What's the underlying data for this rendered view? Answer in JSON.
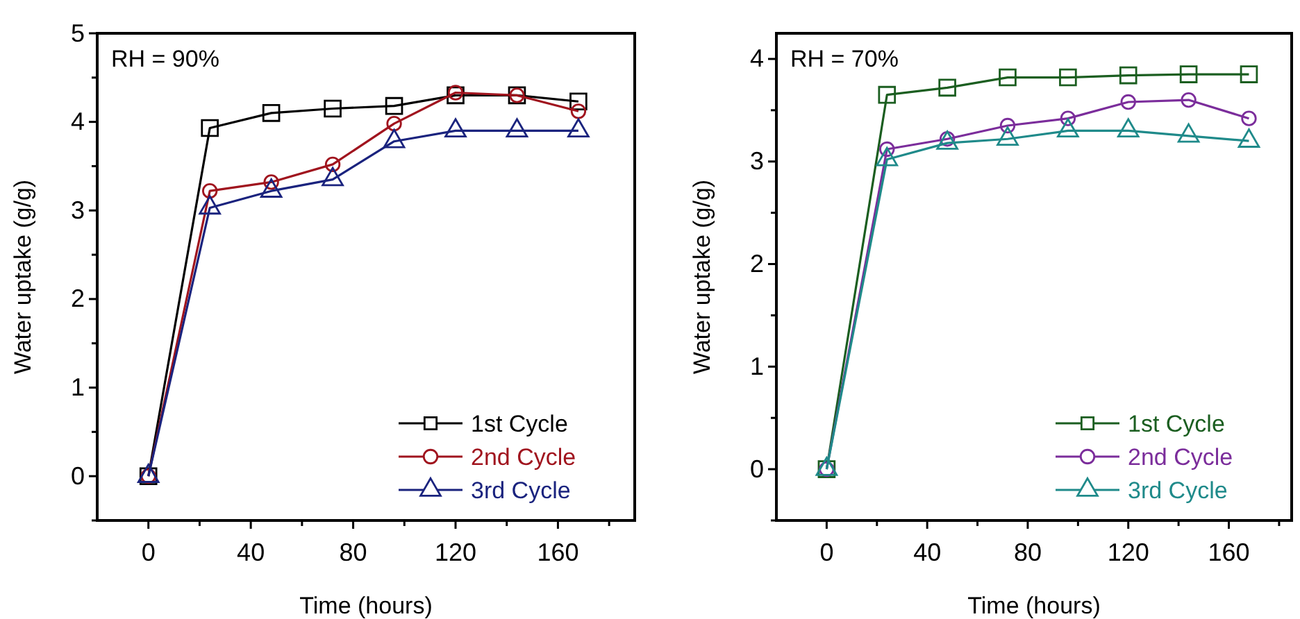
{
  "chart_data": [
    {
      "type": "line",
      "xlabel": "Time (hours)",
      "ylabel": "Water uptake (g/g)",
      "annotations": [
        "RH = 90%"
      ],
      "x": [
        0,
        24,
        48,
        72,
        96,
        120,
        144,
        168
      ],
      "xlim": [
        -20,
        190
      ],
      "xticks": [
        0,
        {
          "value": 20,
          "label": null
        },
        40,
        {
          "value": 60,
          "label": null
        },
        80,
        {
          "value": 100,
          "label": null
        },
        120,
        {
          "value": 140,
          "label": null
        },
        160,
        {
          "value": 180,
          "label": null
        }
      ],
      "ylim": [
        -0.5,
        5
      ],
      "yticks": [
        {
          "value": -0.5,
          "label": null
        },
        0,
        {
          "value": 0.5,
          "label": null
        },
        1,
        {
          "value": 1.5,
          "label": null
        },
        2,
        {
          "value": 2.5,
          "label": null
        },
        3,
        {
          "value": 3.5,
          "label": null
        },
        4,
        {
          "value": 4.5,
          "label": null
        },
        5
      ],
      "grid": false,
      "legend": "bottom right",
      "line_style": "solid",
      "series": [
        {
          "name": "1st Cycle",
          "color": "#000000",
          "marker": "square",
          "values": [
            0,
            3.93,
            4.1,
            4.15,
            4.18,
            4.3,
            4.3,
            4.23
          ]
        },
        {
          "name": "2nd Cycle",
          "color": "#a0141e",
          "marker": "circle",
          "values": [
            0,
            3.22,
            3.32,
            3.52,
            3.98,
            4.33,
            4.3,
            4.12
          ]
        },
        {
          "name": "3rd Cycle",
          "color": "#1a237e",
          "marker": "triangle",
          "values": [
            0,
            3.03,
            3.22,
            3.35,
            3.78,
            3.9,
            3.9,
            3.9
          ]
        }
      ]
    },
    {
      "type": "line",
      "xlabel": "Time (hours)",
      "ylabel": "Water uptake (g/g)",
      "annotations": [
        "RH = 70%"
      ],
      "x": [
        0,
        24,
        48,
        72,
        96,
        120,
        144,
        168
      ],
      "xlim": [
        -20,
        185
      ],
      "xticks": [
        0,
        {
          "value": 20,
          "label": null
        },
        40,
        {
          "value": 60,
          "label": null
        },
        80,
        {
          "value": 100,
          "label": null
        },
        120,
        {
          "value": 140,
          "label": null
        },
        160,
        {
          "value": 180,
          "label": null
        }
      ],
      "ylim": [
        -0.5,
        4.25
      ],
      "yticks": [
        {
          "value": -0.5,
          "label": null
        },
        0,
        {
          "value": 0.5,
          "label": null
        },
        1,
        {
          "value": 1.5,
          "label": null
        },
        2,
        {
          "value": 2.5,
          "label": null
        },
        3,
        {
          "value": 3.5,
          "label": null
        },
        4
      ],
      "grid": false,
      "legend": "bottom right",
      "line_style": "solid",
      "series": [
        {
          "name": "1st Cycle",
          "color": "#1b5e20",
          "marker": "square",
          "values": [
            0,
            3.65,
            3.72,
            3.82,
            3.82,
            3.84,
            3.85,
            3.85
          ]
        },
        {
          "name": "2nd Cycle",
          "color": "#7b2d9b",
          "marker": "circle",
          "values": [
            0,
            3.12,
            3.22,
            3.35,
            3.42,
            3.58,
            3.6,
            3.42
          ]
        },
        {
          "name": "3rd Cycle",
          "color": "#1f8a8a",
          "marker": "triangle",
          "values": [
            0,
            3.02,
            3.18,
            3.22,
            3.3,
            3.3,
            3.25,
            3.2
          ]
        }
      ]
    }
  ]
}
